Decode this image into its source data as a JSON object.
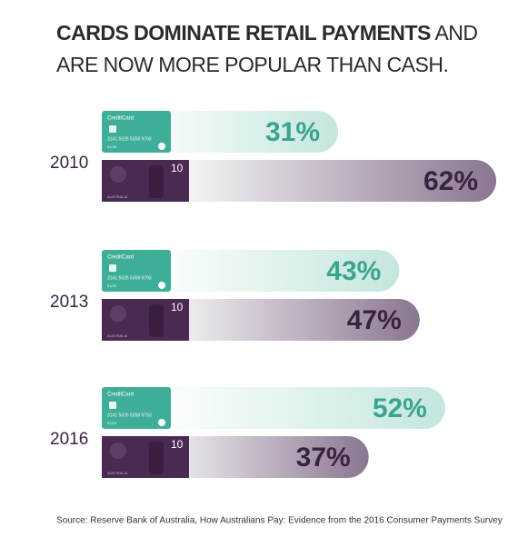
{
  "chart_data": {
    "type": "bar",
    "orientation": "horizontal",
    "title_bold": "CARDS DOMINATE RETAIL PAYMENTS",
    "title_rest": "AND",
    "title_line2": "ARE NOW MORE POPULAR THAN CASH.",
    "categories": [
      "2010",
      "2013",
      "2016"
    ],
    "series": [
      {
        "color": "#c3e6de",
        "label_color": "#3aa58f",
        "values": [
          31,
          43,
          52
        ],
        "value_labels": [
          "31%",
          "43%",
          "52%"
        ]
      },
      {
        "color": "#8a7690",
        "label_color": "#3a2340",
        "values": [
          62,
          47,
          37
        ],
        "value_labels": [
          "62%",
          "47%",
          "37%"
        ]
      }
    ],
    "source": "Source: Reserve Bank of Australia, How Australians Pay: Evidence from the 2016 Consumer Payments Survey"
  },
  "card_image": {
    "brand": "CreditCard",
    "number": "3141 5926 5358 9793",
    "expiry": "01/25"
  },
  "note_image": {
    "denomination": "10",
    "country": "AUSTRALIA"
  }
}
